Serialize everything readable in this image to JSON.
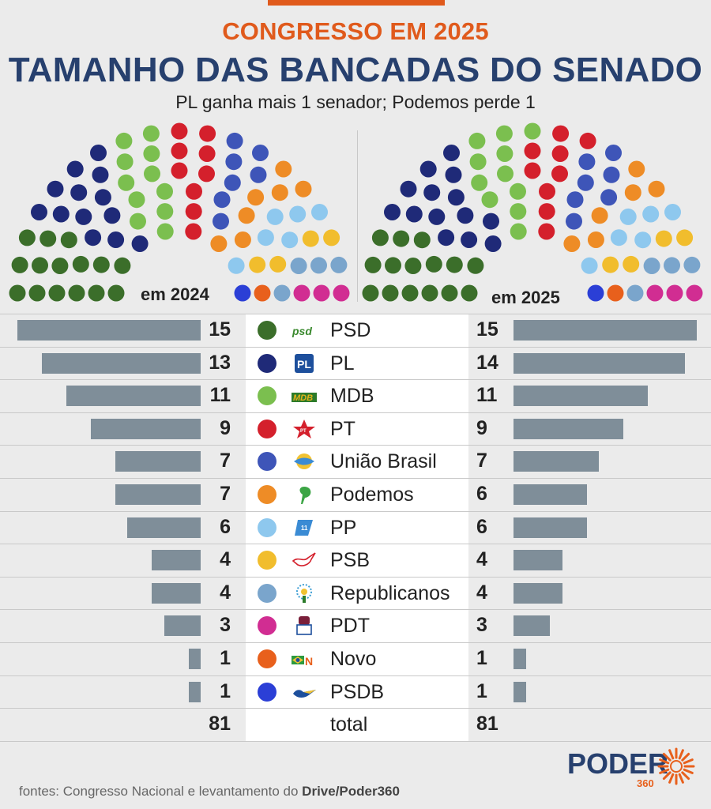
{
  "header": {
    "kicker": "CONGRESSO EM 2025",
    "title": "TAMANHO DAS BANCADAS DO SENADO",
    "subtitle": "PL ganha mais 1 senador; Podemos perde 1"
  },
  "hemicycles": {
    "left_label": "em 2024",
    "right_label": "em 2025"
  },
  "chart_data": {
    "type": "bar",
    "categories": [
      "PSD",
      "PL",
      "MDB",
      "PT",
      "União Brasil",
      "Podemos",
      "PP",
      "PSB",
      "Republicanos",
      "PDT",
      "Novo",
      "PSDB"
    ],
    "series": [
      {
        "name": "em 2024",
        "values": [
          15,
          13,
          11,
          9,
          7,
          7,
          6,
          4,
          4,
          3,
          1,
          1
        ]
      },
      {
        "name": "em 2025",
        "values": [
          15,
          14,
          11,
          9,
          7,
          6,
          6,
          4,
          4,
          3,
          1,
          1
        ]
      }
    ],
    "totals": {
      "label": "total",
      "em 2024": 81,
      "em 2025": 81
    },
    "xlim": [
      0,
      15
    ],
    "colors": [
      "#3b6e2a",
      "#1f2a78",
      "#7bbf4f",
      "#d4202c",
      "#3e55b8",
      "#ee8c26",
      "#8ec8ee",
      "#f1bd2d",
      "#7aa5cc",
      "#d12d92",
      "#e8601c",
      "#2b3fd6"
    ]
  },
  "table": {
    "total_label": "total",
    "total_left": "81",
    "total_right": "81",
    "rows": [
      {
        "party": "PSD",
        "left": "15",
        "right": "15",
        "logo": "psd-logo-icon"
      },
      {
        "party": "PL",
        "left": "13",
        "right": "14",
        "logo": "pl-logo-icon"
      },
      {
        "party": "MDB",
        "left": "11",
        "right": "11",
        "logo": "mdb-logo-icon"
      },
      {
        "party": "PT",
        "left": "9",
        "right": "9",
        "logo": "pt-star-icon"
      },
      {
        "party": "União Brasil",
        "left": "7",
        "right": "7",
        "logo": "uniao-brasil-logo-icon"
      },
      {
        "party": "Podemos",
        "left": "7",
        "right": "6",
        "logo": "podemos-leaf-icon"
      },
      {
        "party": "PP",
        "left": "6",
        "right": "6",
        "logo": "pp-logo-icon"
      },
      {
        "party": "PSB",
        "left": "4",
        "right": "4",
        "logo": "psb-dove-icon"
      },
      {
        "party": "Republicanos",
        "left": "4",
        "right": "4",
        "logo": "republicanos-logo-icon"
      },
      {
        "party": "PDT",
        "left": "3",
        "right": "3",
        "logo": "pdt-logo-icon"
      },
      {
        "party": "Novo",
        "left": "1",
        "right": "1",
        "logo": "novo-logo-icon"
      },
      {
        "party": "PSDB",
        "left": "1",
        "right": "1",
        "logo": "psdb-toucan-icon"
      }
    ]
  },
  "footer": {
    "sources_prefix": "fontes: Congresso Nacional e levantamento do ",
    "sources_bold": "Drive/Poder360"
  },
  "brand": {
    "name": "PODER",
    "number": "360"
  }
}
